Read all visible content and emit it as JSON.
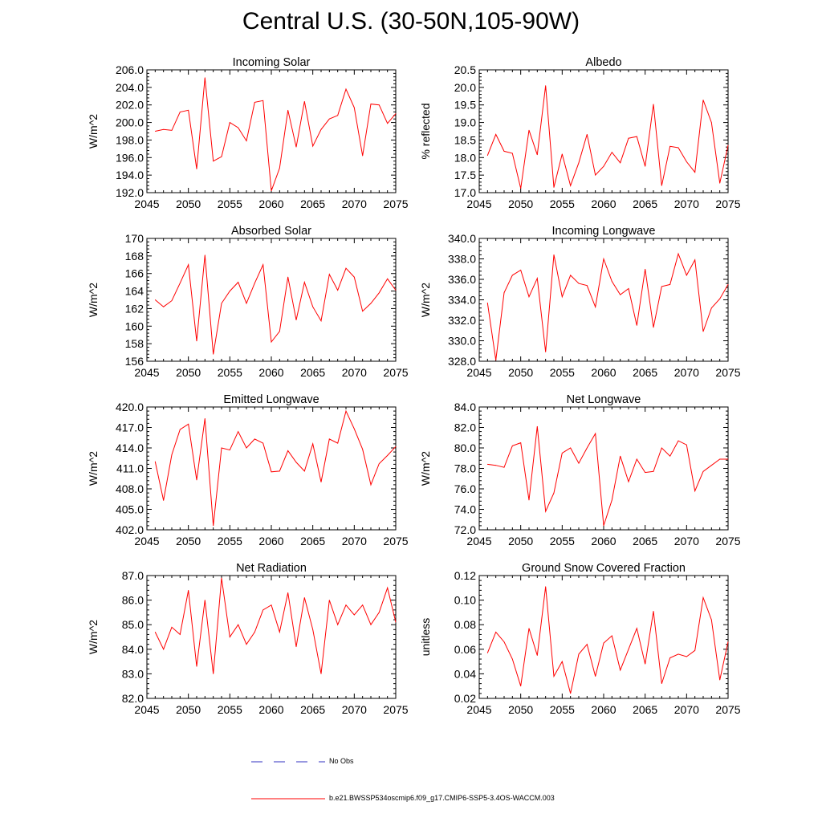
{
  "title": "Central U.S. (30-50N,105-90W)",
  "legend": {
    "obs_label": "No Obs",
    "obs_color": "#3030c0",
    "model_label": "b.e21.BWSSP534oscmip6.f09_g17.CMIP6-SSP5-3.4OS-WACCM.003",
    "model_color": "#ff0000"
  },
  "chart_data": [
    {
      "id": "incoming-solar",
      "type": "line",
      "title": "Incoming Solar",
      "xlabel": "",
      "ylabel": "W/m^2",
      "xlim": [
        2045,
        2075
      ],
      "xticks": [
        2045,
        2050,
        2055,
        2060,
        2065,
        2070,
        2075
      ],
      "ylim": [
        192,
        206
      ],
      "yticks": [
        192,
        194,
        196,
        198,
        200,
        202,
        204,
        206
      ],
      "ydecimals": 1,
      "ytick_labels_shown": true,
      "series": [
        {
          "name": "b.e21.BWSSP534oscmip6.f09_g17.CMIP6-SSP5-3.4OS-WACCM.003",
          "color": "#ff0000",
          "x": [
            2046,
            2047,
            2048,
            2049,
            2050,
            2051,
            2052,
            2053,
            2054,
            2055,
            2056,
            2057,
            2058,
            2059,
            2060,
            2061,
            2062,
            2063,
            2064,
            2065,
            2066,
            2067,
            2068,
            2069,
            2070,
            2071,
            2072,
            2073,
            2074,
            2075
          ],
          "y": [
            199.0,
            199.2,
            199.1,
            201.2,
            201.4,
            194.7,
            205.1,
            195.6,
            196.1,
            200.0,
            199.4,
            197.9,
            202.3,
            202.5,
            192.2,
            194.8,
            201.4,
            197.2,
            202.4,
            197.3,
            199.2,
            200.4,
            200.8,
            203.8,
            201.7,
            196.2,
            202.1,
            202.0,
            199.9,
            201.0
          ]
        }
      ]
    },
    {
      "id": "albedo",
      "type": "line",
      "title": "Albedo",
      "xlabel": "",
      "ylabel": "% reflected",
      "xlim": [
        2045,
        2075
      ],
      "xticks": [
        2045,
        2050,
        2055,
        2060,
        2065,
        2070,
        2075
      ],
      "ylim": [
        17.0,
        20.5
      ],
      "yticks": [
        17.0,
        17.5,
        18.0,
        18.5,
        19.0,
        19.5,
        20.0,
        20.5
      ],
      "ydecimals": 1,
      "ytick_labels_shown": true,
      "series": [
        {
          "name": "b.e21.BWSSP534oscmip6.f09_g17.CMIP6-SSP5-3.4OS-WACCM.003",
          "color": "#ff0000",
          "x": [
            2046,
            2047,
            2048,
            2049,
            2050,
            2051,
            2052,
            2053,
            2054,
            2055,
            2056,
            2057,
            2058,
            2059,
            2060,
            2061,
            2062,
            2063,
            2064,
            2065,
            2066,
            2067,
            2068,
            2069,
            2070,
            2071,
            2072,
            2073,
            2074,
            2075
          ],
          "y": [
            18.06,
            18.66,
            18.18,
            18.12,
            17.12,
            18.78,
            18.08,
            20.05,
            17.15,
            18.1,
            17.2,
            17.85,
            18.66,
            17.5,
            17.75,
            18.15,
            17.85,
            18.55,
            18.6,
            17.75,
            19.52,
            17.2,
            18.32,
            18.28,
            17.88,
            17.58,
            19.64,
            19.0,
            17.27,
            18.35
          ]
        }
      ]
    },
    {
      "id": "absorbed-solar",
      "type": "line",
      "title": "Absorbed Solar",
      "xlabel": "",
      "ylabel": "W/m^2",
      "xlim": [
        2045,
        2075
      ],
      "xticks": [
        2045,
        2050,
        2055,
        2060,
        2065,
        2070,
        2075
      ],
      "ylim": [
        156,
        170
      ],
      "yticks": [
        156,
        158,
        160,
        162,
        164,
        166,
        168,
        170
      ],
      "ydecimals": 0,
      "ytick_labels_shown": true,
      "series": [
        {
          "name": "b.e21.BWSSP534oscmip6.f09_g17.CMIP6-SSP5-3.4OS-WACCM.003",
          "color": "#ff0000",
          "x": [
            2046,
            2047,
            2048,
            2049,
            2050,
            2051,
            2052,
            2053,
            2054,
            2055,
            2056,
            2057,
            2058,
            2059,
            2060,
            2061,
            2062,
            2063,
            2064,
            2065,
            2066,
            2067,
            2068,
            2069,
            2070,
            2071,
            2072,
            2073,
            2074,
            2075
          ],
          "y": [
            163.0,
            162.2,
            162.9,
            164.9,
            167.0,
            158.3,
            168.1,
            156.8,
            162.6,
            164.0,
            165.0,
            162.6,
            164.9,
            167.0,
            158.2,
            159.4,
            165.6,
            160.7,
            165.0,
            162.2,
            160.6,
            165.9,
            164.1,
            166.6,
            165.6,
            161.7,
            162.6,
            163.8,
            165.4,
            164.1
          ]
        }
      ]
    },
    {
      "id": "incoming-longwave",
      "type": "line",
      "title": "Incoming Longwave",
      "xlabel": "",
      "ylabel": "W/m^2",
      "xlim": [
        2045,
        2075
      ],
      "xticks": [
        2045,
        2050,
        2055,
        2060,
        2065,
        2070,
        2075
      ],
      "ylim": [
        328,
        340
      ],
      "yticks": [
        328,
        330,
        332,
        334,
        336,
        338,
        340
      ],
      "ydecimals": 1,
      "ytick_labels_shown": true,
      "series": [
        {
          "name": "b.e21.BWSSP534oscmip6.f09_g17.CMIP6-SSP5-3.4OS-WACCM.003",
          "color": "#ff0000",
          "x": [
            2046,
            2047,
            2048,
            2049,
            2050,
            2051,
            2052,
            2053,
            2054,
            2055,
            2056,
            2057,
            2058,
            2059,
            2060,
            2061,
            2062,
            2063,
            2064,
            2065,
            2066,
            2067,
            2068,
            2069,
            2070,
            2071,
            2072,
            2073,
            2074,
            2075
          ],
          "y": [
            333.7,
            328.1,
            334.7,
            336.4,
            336.9,
            334.3,
            336.1,
            328.9,
            338.4,
            334.3,
            336.4,
            335.6,
            335.4,
            333.3,
            338.0,
            335.8,
            334.5,
            335.1,
            331.5,
            337.0,
            331.3,
            335.3,
            335.5,
            338.5,
            336.4,
            337.9,
            330.9,
            333.2,
            334.1,
            335.5
          ]
        }
      ]
    },
    {
      "id": "emitted-longwave",
      "type": "line",
      "title": "Emitted Longwave",
      "xlabel": "",
      "ylabel": "W/m^2",
      "xlim": [
        2045,
        2075
      ],
      "xticks": [
        2045,
        2050,
        2055,
        2060,
        2065,
        2070,
        2075
      ],
      "ylim": [
        402,
        420
      ],
      "yticks": [
        402,
        405,
        408,
        411,
        414,
        417,
        420
      ],
      "ydecimals": 1,
      "ytick_labels_shown": true,
      "series": [
        {
          "name": "b.e21.BWSSP534oscmip6.f09_g17.CMIP6-SSP5-3.4OS-WACCM.003",
          "color": "#ff0000",
          "x": [
            2046,
            2047,
            2048,
            2049,
            2050,
            2051,
            2052,
            2053,
            2054,
            2055,
            2056,
            2057,
            2058,
            2059,
            2060,
            2061,
            2062,
            2063,
            2064,
            2065,
            2066,
            2067,
            2068,
            2069,
            2070,
            2071,
            2072,
            2073,
            2074,
            2075
          ],
          "y": [
            412.0,
            406.3,
            413.0,
            416.7,
            417.5,
            409.3,
            418.3,
            402.6,
            414.0,
            413.7,
            416.4,
            414.0,
            415.3,
            414.7,
            410.5,
            410.6,
            413.6,
            411.9,
            410.6,
            414.6,
            409.0,
            415.3,
            414.7,
            419.4,
            416.8,
            413.8,
            408.6,
            411.7,
            412.9,
            414.2
          ]
        }
      ]
    },
    {
      "id": "net-longwave",
      "type": "line",
      "title": "Net Longwave",
      "xlabel": "",
      "ylabel": "W/m^2",
      "xlim": [
        2045,
        2075
      ],
      "xticks": [
        2045,
        2050,
        2055,
        2060,
        2065,
        2070,
        2075
      ],
      "ylim": [
        72,
        84
      ],
      "yticks": [
        72,
        74,
        76,
        78,
        80,
        82,
        84
      ],
      "ydecimals": 1,
      "ytick_labels_shown": true,
      "series": [
        {
          "name": "b.e21.BWSSP534oscmip6.f09_g17.CMIP6-SSP5-3.4OS-WACCM.003",
          "color": "#ff0000",
          "x": [
            2046,
            2047,
            2048,
            2049,
            2050,
            2051,
            2052,
            2053,
            2054,
            2055,
            2056,
            2057,
            2058,
            2059,
            2060,
            2061,
            2062,
            2063,
            2064,
            2065,
            2066,
            2067,
            2068,
            2069,
            2070,
            2071,
            2072,
            2073,
            2074,
            2075
          ],
          "y": [
            78.4,
            78.3,
            78.1,
            80.2,
            80.5,
            74.9,
            82.1,
            73.8,
            75.6,
            79.5,
            80.0,
            78.5,
            80.0,
            81.4,
            72.4,
            74.9,
            79.2,
            76.7,
            78.9,
            77.6,
            77.7,
            80.0,
            79.2,
            80.7,
            80.3,
            75.8,
            77.7,
            78.3,
            78.9,
            78.9
          ]
        }
      ]
    },
    {
      "id": "net-radiation",
      "type": "line",
      "title": "Net Radiation",
      "xlabel": "",
      "ylabel": "W/m^2",
      "xlim": [
        2045,
        2075
      ],
      "xticks": [
        2045,
        2050,
        2055,
        2060,
        2065,
        2070,
        2075
      ],
      "ylim": [
        82,
        87
      ],
      "yticks": [
        82,
        83,
        84,
        85,
        86,
        87
      ],
      "ydecimals": 1,
      "ytick_labels_shown": true,
      "series": [
        {
          "name": "b.e21.BWSSP534oscmip6.f09_g17.CMIP6-SSP5-3.4OS-WACCM.003",
          "color": "#ff0000",
          "x": [
            2046,
            2047,
            2048,
            2049,
            2050,
            2051,
            2052,
            2053,
            2054,
            2055,
            2056,
            2057,
            2058,
            2059,
            2060,
            2061,
            2062,
            2063,
            2064,
            2065,
            2066,
            2067,
            2068,
            2069,
            2070,
            2071,
            2072,
            2073,
            2074,
            2075
          ],
          "y": [
            84.7,
            84.0,
            84.9,
            84.6,
            86.4,
            83.3,
            86.0,
            83.0,
            86.9,
            84.5,
            85.0,
            84.2,
            84.7,
            85.6,
            85.8,
            84.7,
            86.3,
            84.1,
            86.1,
            84.8,
            83.0,
            86.0,
            85.0,
            85.8,
            85.4,
            85.8,
            85.0,
            85.5,
            86.5,
            85.1
          ]
        }
      ]
    },
    {
      "id": "ground-snow-covered-fraction",
      "type": "line",
      "title": "Ground Snow Covered Fraction",
      "xlabel": "",
      "ylabel": "unitless",
      "xlim": [
        2045,
        2075
      ],
      "xticks": [
        2045,
        2050,
        2055,
        2060,
        2065,
        2070,
        2075
      ],
      "ylim": [
        0.02,
        0.12
      ],
      "yticks": [
        0.02,
        0.04,
        0.06,
        0.08,
        0.1,
        0.12
      ],
      "ydecimals": 2,
      "ytick_labels_shown": true,
      "series": [
        {
          "name": "b.e21.BWSSP534oscmip6.f09_g17.CMIP6-SSP5-3.4OS-WACCM.003",
          "color": "#ff0000",
          "x": [
            2046,
            2047,
            2048,
            2049,
            2050,
            2051,
            2052,
            2053,
            2054,
            2055,
            2056,
            2057,
            2058,
            2059,
            2060,
            2061,
            2062,
            2063,
            2064,
            2065,
            2066,
            2067,
            2068,
            2069,
            2070,
            2071,
            2072,
            2073,
            2074,
            2075
          ],
          "y": [
            0.057,
            0.074,
            0.066,
            0.052,
            0.03,
            0.077,
            0.055,
            0.111,
            0.038,
            0.05,
            0.024,
            0.056,
            0.064,
            0.038,
            0.065,
            0.071,
            0.043,
            0.06,
            0.077,
            0.048,
            0.091,
            0.032,
            0.053,
            0.056,
            0.054,
            0.059,
            0.102,
            0.084,
            0.035,
            0.066
          ]
        }
      ]
    }
  ]
}
